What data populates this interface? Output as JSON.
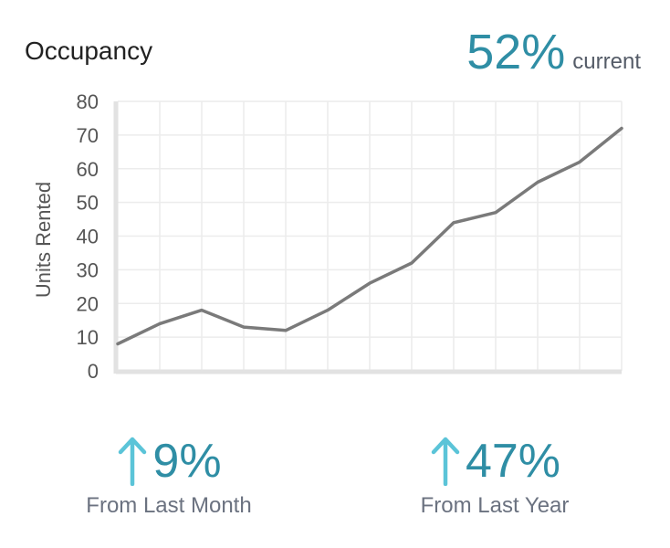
{
  "header": {
    "title": "Occupancy",
    "current_value": "52%",
    "current_label": "current"
  },
  "stats": [
    {
      "value": "9%",
      "label": "From Last Month",
      "direction": "up-arrow-icon"
    },
    {
      "value": "47%",
      "label": "From Last Year",
      "direction": "up-arrow-icon"
    }
  ],
  "colors": {
    "accent": "#2f8ea5",
    "arrow": "#5bc4d8",
    "line": "#7a7a7a",
    "grid": "#ececec"
  },
  "chart_data": {
    "type": "line",
    "title": "",
    "xlabel": "",
    "ylabel": "Units Rented",
    "ylim": [
      0,
      80
    ],
    "yticks": [
      0,
      10,
      20,
      30,
      40,
      50,
      60,
      70,
      80
    ],
    "grid": true,
    "x": [
      0,
      1,
      2,
      3,
      4,
      5,
      6,
      7,
      8,
      9,
      10,
      11,
      12
    ],
    "series": [
      {
        "values": [
          8,
          14,
          18,
          13,
          12,
          18,
          26,
          32,
          44,
          47,
          56,
          62,
          72
        ]
      }
    ]
  }
}
